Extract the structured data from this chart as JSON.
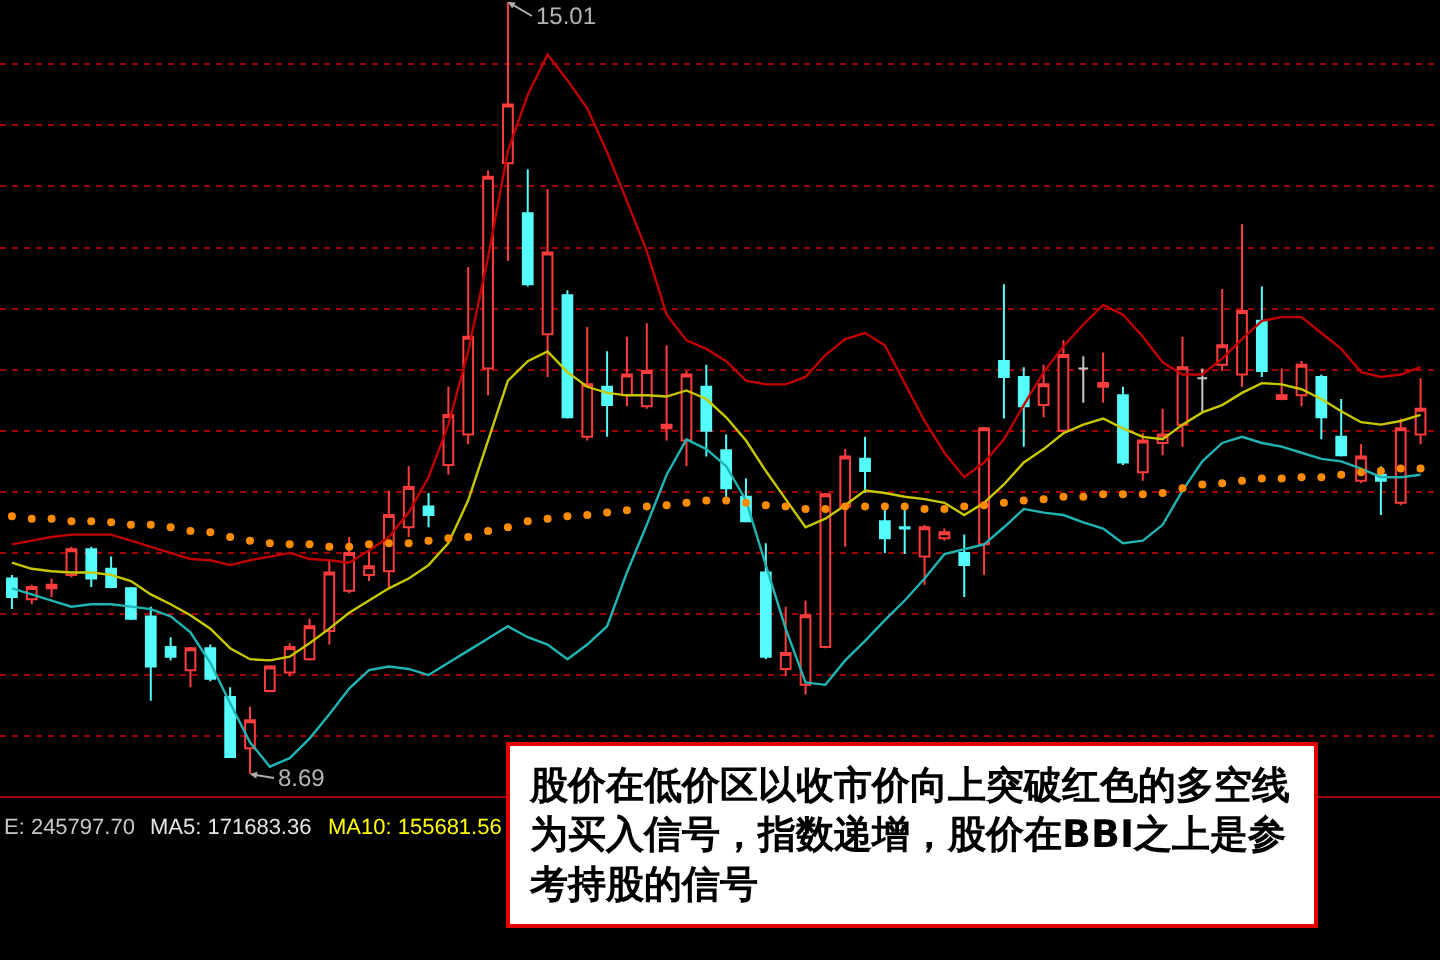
{
  "chart_data": {
    "type": "candlestick",
    "categories": [
      null,
      null,
      null,
      null,
      null,
      null,
      null,
      null,
      null,
      null,
      null,
      null,
      null,
      null,
      null,
      null,
      null,
      null,
      null,
      null,
      null,
      null,
      null,
      null,
      null,
      null,
      null,
      null,
      null,
      null,
      null,
      null,
      null,
      null,
      null,
      null,
      null,
      null,
      null,
      null,
      null,
      null,
      null,
      null,
      null,
      null,
      null,
      null,
      null,
      null,
      null,
      null,
      null,
      null,
      null,
      null,
      null,
      null,
      null,
      null,
      null,
      null,
      null,
      null,
      null,
      null,
      null,
      null,
      null,
      null,
      null,
      null
    ],
    "ohlc": [
      [
        10.29,
        10.32,
        10.04,
        10.14
      ],
      [
        10.12,
        10.24,
        10.08,
        10.22
      ],
      [
        10.21,
        10.29,
        10.14,
        10.24
      ],
      [
        10.32,
        10.55,
        10.3,
        10.53
      ],
      [
        10.53,
        10.55,
        10.22,
        10.29
      ],
      [
        10.37,
        10.47,
        10.21,
        10.22
      ],
      [
        10.21,
        10.22,
        9.95,
        9.96
      ],
      [
        9.98,
        10.06,
        9.29,
        9.57
      ],
      [
        9.73,
        9.81,
        9.62,
        9.65
      ],
      [
        9.54,
        9.73,
        9.4,
        9.72
      ],
      [
        9.72,
        9.75,
        9.45,
        9.47
      ],
      [
        9.32,
        9.4,
        8.82,
        8.83
      ],
      [
        8.9,
        9.24,
        8.69,
        9.13
      ],
      [
        9.37,
        9.58,
        9.36,
        9.57
      ],
      [
        9.52,
        9.76,
        9.49,
        9.73
      ],
      [
        9.63,
        9.96,
        9.62,
        9.9
      ],
      [
        9.86,
        10.44,
        9.75,
        10.34
      ],
      [
        10.19,
        10.63,
        10.17,
        10.5
      ],
      [
        10.32,
        10.53,
        10.27,
        10.39
      ],
      [
        10.35,
        11.01,
        10.22,
        10.81
      ],
      [
        10.71,
        11.21,
        10.63,
        11.04
      ],
      [
        10.88,
        10.99,
        10.71,
        10.81
      ],
      [
        11.22,
        11.86,
        11.14,
        11.63
      ],
      [
        11.47,
        12.84,
        11.39,
        12.27
      ],
      [
        12.01,
        13.63,
        11.79,
        13.58
      ],
      [
        13.69,
        15.01,
        12.89,
        14.17
      ],
      [
        13.28,
        13.64,
        12.68,
        12.7
      ],
      [
        12.29,
        13.48,
        11.94,
        12.96
      ],
      [
        12.61,
        12.65,
        11.6,
        11.61
      ],
      [
        11.45,
        12.35,
        11.42,
        11.88
      ],
      [
        11.86,
        12.15,
        11.45,
        11.71
      ],
      [
        11.79,
        12.27,
        11.7,
        11.96
      ],
      [
        11.7,
        12.38,
        11.68,
        11.99
      ],
      [
        11.52,
        12.2,
        11.42,
        11.55
      ],
      [
        11.42,
        11.99,
        11.21,
        11.96
      ],
      [
        11.86,
        12.04,
        11.29,
        11.5
      ],
      [
        11.34,
        11.47,
        10.96,
        11.03
      ],
      [
        10.96,
        11.11,
        10.75,
        10.76
      ],
      [
        10.34,
        10.58,
        9.63,
        9.65
      ],
      [
        9.55,
        10.06,
        9.49,
        9.68
      ],
      [
        9.42,
        10.11,
        9.34,
        9.99
      ],
      [
        9.73,
        10.99,
        9.72,
        10.98
      ],
      [
        10.88,
        11.35,
        10.55,
        11.29
      ],
      [
        11.27,
        11.45,
        10.99,
        11.17
      ],
      [
        10.76,
        10.89,
        10.5,
        10.62
      ],
      [
        10.71,
        10.89,
        10.49,
        10.7
      ],
      [
        10.47,
        10.73,
        10.24,
        10.71
      ],
      [
        10.62,
        10.7,
        10.6,
        10.67
      ],
      [
        10.5,
        10.65,
        10.14,
        10.4
      ],
      [
        10.57,
        11.53,
        10.32,
        11.52
      ],
      [
        12.07,
        12.7,
        11.6,
        11.94
      ],
      [
        11.94,
        12.02,
        11.37,
        11.7
      ],
      [
        11.71,
        12.04,
        11.61,
        11.88
      ],
      [
        11.5,
        12.24,
        11.48,
        12.12
      ],
      [
        12.01,
        12.11,
        11.73,
        12.01
      ],
      [
        11.86,
        12.14,
        11.73,
        11.89
      ],
      [
        11.79,
        11.86,
        11.22,
        11.24
      ],
      [
        11.16,
        11.48,
        11.09,
        11.42
      ],
      [
        11.4,
        11.68,
        11.3,
        11.47
      ],
      [
        11.55,
        12.27,
        11.37,
        12.02
      ],
      [
        11.93,
        12.01,
        11.66,
        11.93
      ],
      [
        12.04,
        12.66,
        11.99,
        12.2
      ],
      [
        11.96,
        13.19,
        11.86,
        12.48
      ],
      [
        12.4,
        12.68,
        11.94,
        11.99
      ],
      [
        11.76,
        12.01,
        11.75,
        11.79
      ],
      [
        11.79,
        12.07,
        11.7,
        12.04
      ],
      [
        11.94,
        11.96,
        11.43,
        11.61
      ],
      [
        11.45,
        11.76,
        11.29,
        11.3
      ],
      [
        11.09,
        11.39,
        11.07,
        11.29
      ],
      [
        11.14,
        11.21,
        10.81,
        11.09
      ],
      [
        10.91,
        11.6,
        10.89,
        11.52
      ],
      [
        11.47,
        11.93,
        11.39,
        11.68
      ]
    ],
    "colors": [
      "#54fcfc",
      "#ff3c3c",
      "#ff3c3c",
      "#ff3c3c",
      "#54fcfc",
      "#54fcfc",
      "#54fcfc",
      "#54fcfc",
      "#54fcfc",
      "#ff3c3c",
      "#54fcfc",
      "#54fcfc",
      "#ff3c3c",
      "#ff3c3c",
      "#ff3c3c",
      "#ff3c3c",
      "#ff3c3c",
      "#ff3c3c",
      "#ff3c3c",
      "#ff3c3c",
      "#ff3c3c",
      "#54fcfc",
      "#ff3c3c",
      "#ff3c3c",
      "#ff3c3c",
      "#ff3c3c",
      "#54fcfc",
      "#ff3c3c",
      "#54fcfc",
      "#ff3c3c",
      "#54fcfc",
      "#ff3c3c",
      "#ff3c3c",
      "#ff3c3c",
      "#ff3c3c",
      "#54fcfc",
      "#54fcfc",
      "#54fcfc",
      "#54fcfc",
      "#ff3c3c",
      "#ff3c3c",
      "#ff3c3c",
      "#ff3c3c",
      "#54fcfc",
      "#54fcfc",
      "#54fcfc",
      "#ff3c3c",
      "#ff3c3c",
      "#54fcfc",
      "#ff3c3c",
      "#54fcfc",
      "#54fcfc",
      "#ff3c3c",
      "#ff3c3c",
      "#c8c8c8",
      "#ff3c3c",
      "#54fcfc",
      "#ff3c3c",
      "#ff3c3c",
      "#ff3c3c",
      "#c8c8c8",
      "#ff3c3c",
      "#ff3c3c",
      "#54fcfc",
      "#ff3c3c",
      "#ff3c3c",
      "#54fcfc",
      "#54fcfc",
      "#ff3c3c",
      "#54fcfc",
      "#ff3c3c",
      "#ff3c3c"
    ],
    "series": [
      {
        "type": "line",
        "color": "#c00000",
        "values": [
          10.57,
          10.6,
          10.63,
          10.65,
          10.65,
          10.65,
          10.6,
          10.55,
          10.5,
          10.45,
          10.44,
          10.4,
          10.44,
          10.47,
          10.5,
          10.45,
          10.44,
          10.42,
          10.52,
          10.63,
          10.83,
          11.12,
          11.55,
          12.15,
          12.92,
          13.79,
          14.25,
          14.58,
          14.37,
          14.14,
          13.78,
          13.38,
          12.97,
          12.45,
          12.24,
          12.17,
          12.07,
          11.91,
          11.88,
          11.88,
          11.94,
          12.12,
          12.25,
          12.3,
          12.2,
          11.89,
          11.58,
          11.32,
          11.12,
          11.24,
          11.43,
          11.71,
          11.98,
          12.19,
          12.37,
          12.53,
          12.45,
          12.27,
          12.06,
          11.96,
          11.96,
          12.09,
          12.25,
          12.4,
          12.43,
          12.43,
          12.3,
          12.17,
          11.98,
          11.94,
          11.96,
          12.02
        ]
      },
      {
        "type": "line",
        "color": "#c8c800",
        "values": [
          10.42,
          10.37,
          10.35,
          10.34,
          10.34,
          10.32,
          10.27,
          10.16,
          10.08,
          9.99,
          9.88,
          9.72,
          9.63,
          9.62,
          9.65,
          9.76,
          9.88,
          10.01,
          10.11,
          10.21,
          10.29,
          10.4,
          10.58,
          10.93,
          11.42,
          11.91,
          12.07,
          12.15,
          11.98,
          11.86,
          11.81,
          11.79,
          11.79,
          11.78,
          11.83,
          11.76,
          11.61,
          11.42,
          11.17,
          10.94,
          10.71,
          10.78,
          10.89,
          11.01,
          10.99,
          10.96,
          10.94,
          10.91,
          10.81,
          10.91,
          11.06,
          11.24,
          11.35,
          11.48,
          11.55,
          11.6,
          11.52,
          11.45,
          11.43,
          11.55,
          11.65,
          11.71,
          11.81,
          11.89,
          11.88,
          11.84,
          11.76,
          11.66,
          11.57,
          11.55,
          11.58,
          11.63
        ]
      },
      {
        "type": "line",
        "color": "#20b4b4",
        "values": [
          10.21,
          10.16,
          10.11,
          10.06,
          10.08,
          10.08,
          10.06,
          10.04,
          9.98,
          9.85,
          9.6,
          9.27,
          8.95,
          8.75,
          8.82,
          8.98,
          9.18,
          9.39,
          9.54,
          9.57,
          9.55,
          9.5,
          9.6,
          9.7,
          9.8,
          9.9,
          9.81,
          9.75,
          9.63,
          9.75,
          9.9,
          10.34,
          10.73,
          11.14,
          11.43,
          11.35,
          11.21,
          10.93,
          10.4,
          9.88,
          9.44,
          9.42,
          9.62,
          9.78,
          9.95,
          10.11,
          10.29,
          10.49,
          10.53,
          10.57,
          10.71,
          10.86,
          10.83,
          10.81,
          10.75,
          10.7,
          10.58,
          10.6,
          10.73,
          11.01,
          11.25,
          11.4,
          11.45,
          11.4,
          11.37,
          11.32,
          11.27,
          11.25,
          11.19,
          11.12,
          11.12,
          11.14
        ]
      },
      {
        "type": "scatter",
        "color": "#ff8c00",
        "marker": "circle",
        "values": [
          10.8,
          10.78,
          10.78,
          10.76,
          10.76,
          10.75,
          10.73,
          10.73,
          10.71,
          10.68,
          10.67,
          10.63,
          10.6,
          10.58,
          10.57,
          10.57,
          10.55,
          10.55,
          10.57,
          10.58,
          10.58,
          10.6,
          10.62,
          10.63,
          10.68,
          10.71,
          10.76,
          10.78,
          10.8,
          10.81,
          10.83,
          10.85,
          10.88,
          10.89,
          10.91,
          10.93,
          10.93,
          10.91,
          10.89,
          10.88,
          10.86,
          10.86,
          10.88,
          10.88,
          10.88,
          10.88,
          10.86,
          10.86,
          10.88,
          10.89,
          10.91,
          10.93,
          10.94,
          10.96,
          10.96,
          10.98,
          10.98,
          10.98,
          10.99,
          11.03,
          11.06,
          11.07,
          11.09,
          11.11,
          11.11,
          11.12,
          11.12,
          11.14,
          11.16,
          11.17,
          11.19,
          11.19
        ]
      }
    ],
    "yticks": [
      {
        "value": 9.0,
        "label": null
      },
      {
        "value": 9.5,
        "label": null
      },
      {
        "value": 10.0,
        "label": null
      },
      {
        "value": 10.5,
        "label": null
      },
      {
        "value": 11.0,
        "label": null
      },
      {
        "value": 11.5,
        "label": null
      },
      {
        "value": 12.0,
        "label": null
      },
      {
        "value": 12.5,
        "label": null
      },
      {
        "value": 13.0,
        "label": null
      },
      {
        "value": 13.5,
        "label": null
      },
      {
        "value": 14.0,
        "label": null
      },
      {
        "value": 14.5,
        "label": null
      }
    ],
    "grid": "y",
    "annotations": [
      "15.01",
      "8.69",
      "E: 245797.70",
      "MA5: 171683.36",
      "MA10: 155681.56",
      "股价在低价区以收市价向上突破红色的多空线为买入信号，指数递增，股价在BBI之上是参考持股的信号"
    ]
  }
}
